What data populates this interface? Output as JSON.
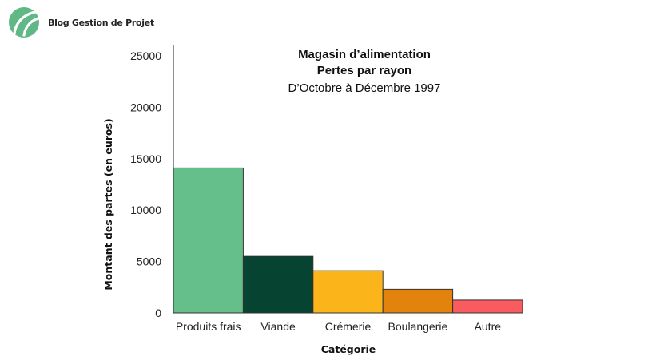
{
  "brand": {
    "name": "Blog Gestion de Projet",
    "logo_icon": "leaf-logo-icon",
    "logo_color": "#5fb885"
  },
  "chart_data": {
    "type": "bar",
    "title": "Magasin d’alimentation",
    "subtitle": "Pertes par rayon",
    "subtitle2": "D’Octobre à Décembre 1997",
    "xlabel": "Catégorie",
    "ylabel": "Montant des partes (en euros)",
    "categories": [
      "Produits frais",
      "Viande",
      "Crémerie",
      "Boulangerie",
      "Autre"
    ],
    "values": [
      14100,
      5500,
      4100,
      2300,
      1250
    ],
    "colors": [
      "#64bf8a",
      "#064331",
      "#fbb51a",
      "#e2830e",
      "#fa5b5e"
    ],
    "ylim": [
      0,
      25000
    ],
    "yticks": [
      0,
      5000,
      10000,
      15000,
      20000,
      25000
    ],
    "grid": false,
    "legend": "none"
  }
}
